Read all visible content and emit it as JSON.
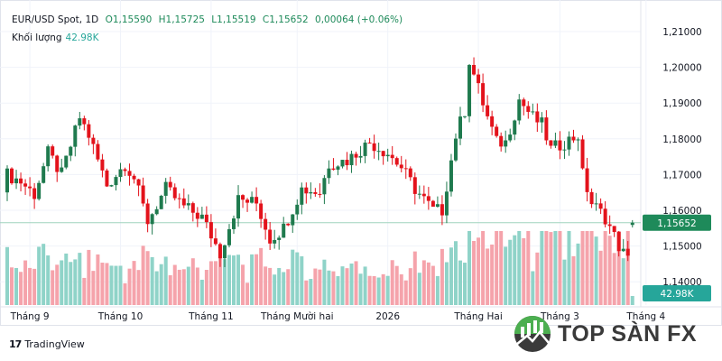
{
  "header": {
    "symbol": "EUR/USD Spot, 1D",
    "open": "O1,15590",
    "high": "H1,15725",
    "low": "L1,15519",
    "close": "C1,15652",
    "change": "0,00064 (+0.06%)",
    "volume_label": "Khối lượng",
    "volume_value": "42.98K"
  },
  "chart_data": {
    "type": "candlestick",
    "title": "EUR/USD Spot, 1D",
    "ylim": [
      1.1362,
      1.2138
    ],
    "y_ticks": [
      "1,21000",
      "1,20000",
      "1,19000",
      "1,18000",
      "1,17000",
      "1,16000",
      "1,15000",
      "1,14000"
    ],
    "y_tick_values": [
      1.21,
      1.2,
      1.19,
      1.18,
      1.17,
      1.16,
      1.15,
      1.14
    ],
    "x_ticks": [
      "Tháng 9",
      "Tháng 10",
      "Tháng 11",
      "Tháng Mười hai",
      "2026",
      "Tháng Hai",
      "Tháng 3",
      "Tháng 4"
    ],
    "x_tick_index": [
      5,
      25,
      45,
      64,
      84,
      104,
      122,
      141
    ],
    "candle_count": 139,
    "close_anchors": [
      [
        0,
        1.17
      ],
      [
        3,
        1.168
      ],
      [
        6,
        1.1645
      ],
      [
        9,
        1.176
      ],
      [
        12,
        1.17
      ],
      [
        16,
        1.186
      ],
      [
        18,
        1.181
      ],
      [
        22,
        1.167
      ],
      [
        26,
        1.173
      ],
      [
        28,
        1.169
      ],
      [
        31,
        1.157
      ],
      [
        35,
        1.166
      ],
      [
        39,
        1.161
      ],
      [
        43,
        1.158
      ],
      [
        47,
        1.148
      ],
      [
        51,
        1.163
      ],
      [
        55,
        1.162
      ],
      [
        58,
        1.152
      ],
      [
        61,
        1.155
      ],
      [
        65,
        1.166
      ],
      [
        69,
        1.165
      ],
      [
        71,
        1.173
      ],
      [
        75,
        1.174
      ],
      [
        78,
        1.177
      ],
      [
        80,
        1.179
      ],
      [
        84,
        1.176
      ],
      [
        87,
        1.172
      ],
      [
        90,
        1.166
      ],
      [
        94,
        1.16
      ],
      [
        96,
        1.16
      ],
      [
        99,
        1.181
      ],
      [
        101,
        1.188
      ],
      [
        102,
        1.202
      ],
      [
        104,
        1.194
      ],
      [
        106,
        1.186
      ],
      [
        108,
        1.179
      ],
      [
        110,
        1.179
      ],
      [
        113,
        1.191
      ],
      [
        116,
        1.186
      ],
      [
        118,
        1.184
      ],
      [
        120,
        1.177
      ],
      [
        123,
        1.179
      ],
      [
        126,
        1.181
      ],
      [
        127,
        1.17
      ],
      [
        129,
        1.162
      ],
      [
        132,
        1.158
      ],
      [
        135,
        1.15
      ],
      [
        137,
        1.146
      ],
      [
        139,
        1.156
      ],
      [
        141,
        1.158
      ],
      [
        143,
        1.16
      ],
      [
        145,
        1.159
      ],
      [
        138,
        1.1565
      ]
    ],
    "last": {
      "open": 1.1559,
      "high": 1.15725,
      "low": 1.15519,
      "close": 1.15652,
      "volume": "42.98K"
    },
    "price_label": "1,15652",
    "volume_label": "42.98K",
    "colors": {
      "up": "#1f7a4e",
      "down": "#e3121b",
      "vol_up": "#8fd3c8",
      "vol_down": "#f5a3ab",
      "last_price": "#1e8a5a",
      "last_volume": "#26a69a"
    }
  },
  "branding": {
    "tradingview": "TradingView",
    "watermark": "TOP SÀN FX"
  }
}
